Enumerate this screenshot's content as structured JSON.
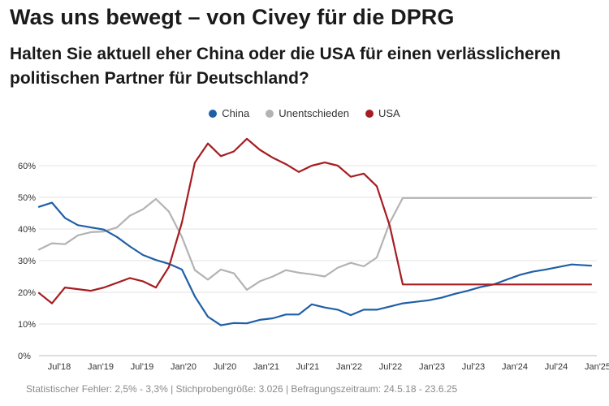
{
  "title": "Was uns bewegt – von Civey für die DPRG",
  "subtitle": "Halten Sie aktuell eher China oder die USA für einen verlässlicheren politischen Partner für Deutschland?",
  "footer": "Statistischer Fehler: 2,5% - 3,3% | Stichprobengröße: 3.026 | Befragungszeitraum: 24.5.18 - 23.6.25",
  "colors": {
    "China": "#1f5fa6",
    "Unentschieden": "#b3b3b3",
    "USA": "#a51d22",
    "grid": "#e3e3e3",
    "axis": "#bdbdbd"
  },
  "chart_data": {
    "type": "line",
    "title": "",
    "xlabel": "",
    "ylabel": "",
    "x_tick_labels": [
      "Jul'18",
      "Jan'19",
      "Jul'19",
      "Jan'20",
      "Jul'20",
      "Jan'21",
      "Jul'21",
      "Jan'22",
      "Jul'22",
      "Jan'23",
      "Jul'23",
      "Jan'24",
      "Jul'24",
      "Jan'25"
    ],
    "y_tick_labels": [
      "0%",
      "10%",
      "20%",
      "30%",
      "40%",
      "50%",
      "60%"
    ],
    "y_ticks": [
      0,
      10,
      20,
      30,
      40,
      50,
      60
    ],
    "ylim": [
      0,
      70
    ],
    "grid": true,
    "legend_position": "top-center",
    "x": [
      "2018-05",
      "2018-07",
      "2018-09",
      "2018-11",
      "2019-01",
      "2019-03",
      "2019-05",
      "2019-07",
      "2019-09",
      "2019-11",
      "2020-01",
      "2020-03",
      "2020-05",
      "2020-07",
      "2020-09",
      "2020-11",
      "2021-01",
      "2021-03",
      "2021-05",
      "2021-07",
      "2021-09",
      "2021-11",
      "2022-01",
      "2022-03",
      "2022-05",
      "2022-07",
      "2022-09",
      "2022-11",
      "2023-01",
      "2023-03",
      "2023-05",
      "2023-07",
      "2023-09",
      "2023-11",
      "2024-01",
      "2024-03",
      "2024-05",
      "2024-07",
      "2024-09",
      "2024-11",
      "2025-01",
      "2025-03",
      "2025-06"
    ],
    "series": [
      {
        "name": "China",
        "values": [
          47,
          48.3,
          43.5,
          41.2,
          40.5,
          39.8,
          37.5,
          34.5,
          31.8,
          30.2,
          29,
          27.2,
          18.7,
          12.3,
          9.6,
          10.3,
          10.2,
          11.3,
          11.8,
          13,
          13,
          16.2,
          15.2,
          14.5,
          12.8,
          14.5,
          14.5,
          15.5,
          16.5,
          17,
          17.5,
          18.3,
          19.5,
          20.5,
          21.7,
          22.5,
          24,
          25.5,
          26.5,
          27.2,
          28,
          28.8,
          28.4
        ]
      },
      {
        "name": "Unentschieden",
        "values": [
          33.5,
          35.5,
          35.2,
          38,
          39,
          39.2,
          40.5,
          44.2,
          46.2,
          49.5,
          45.5,
          37.5,
          27,
          24,
          27.2,
          26,
          20.8,
          23.5,
          25,
          27,
          26.2,
          25.7,
          25,
          27.8,
          29.3,
          28.2,
          31,
          42,
          49.8,
          49.8,
          49.8,
          49.8,
          49.8,
          49.8,
          49.8,
          49.8,
          49.8,
          49.8,
          49.8,
          49.8,
          49.8,
          49.8,
          49.8
        ]
      },
      {
        "name": "USA",
        "values": [
          19.8,
          16.5,
          21.5,
          21,
          20.5,
          21.5,
          23,
          24.5,
          23.5,
          21.5,
          28,
          42,
          61,
          67,
          63,
          64.5,
          68.5,
          65,
          62.5,
          60.5,
          58,
          60,
          61,
          60,
          56.5,
          57.5,
          53.5,
          41,
          22.5,
          22.5,
          22.5,
          22.5,
          22.5,
          22.5,
          22.5,
          22.5,
          22.5,
          22.5,
          22.5,
          22.5,
          22.5,
          22.5,
          22.5
        ]
      }
    ]
  }
}
